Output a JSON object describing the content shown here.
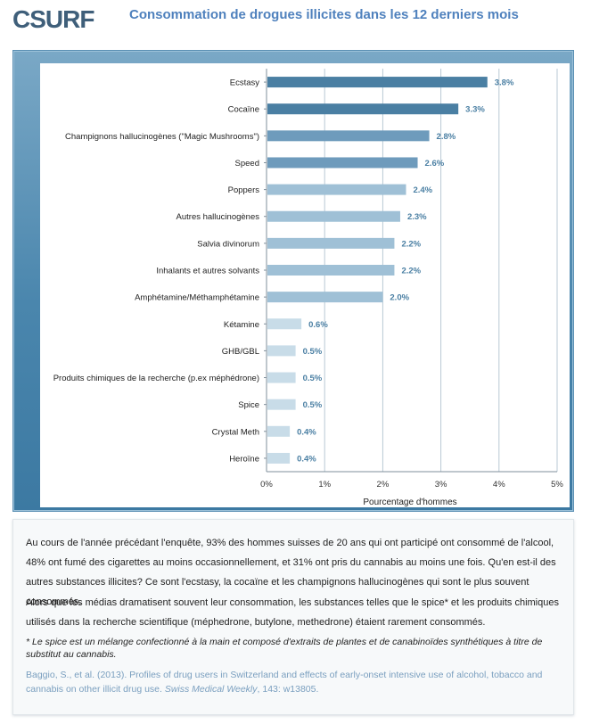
{
  "header": {
    "logo_text": "CSURF",
    "title": "Consommation de drogues illicites dans les 12 derniers mois"
  },
  "colors": {
    "dark": "#4a7fa3",
    "mid": "#6e9bbc",
    "light": "#9fc0d6",
    "pale": "#c8dce8",
    "label": "#4a7fa3",
    "accent": "#4f81bd"
  },
  "chart_data": {
    "type": "bar",
    "orientation": "horizontal",
    "categories": [
      "Ecstasy",
      "Cocaïne",
      "Champignons hallucinogènes (\"Magic Mushrooms\")",
      "Speed",
      "Poppers",
      "Autres hallucinogènes",
      "Salvia divinorum",
      "Inhalants et autres solvants",
      "Amphétamine/Méthamphétamine",
      "Kétamine",
      "GHB/GBL",
      "Produits chimiques de la recherche (p.ex méphédrone)",
      "Spice",
      "Crystal Meth",
      "Heroïne"
    ],
    "values": [
      3.8,
      3.3,
      2.8,
      2.6,
      2.4,
      2.3,
      2.2,
      2.2,
      2.0,
      0.6,
      0.5,
      0.5,
      0.5,
      0.4,
      0.4
    ],
    "data_labels": [
      "3.8%",
      "3.3%",
      "2.8%",
      "2.6%",
      "2.4%",
      "2.3%",
      "2.2%",
      "2.2%",
      "2.0%",
      "0.6%",
      "0.5%",
      "0.5%",
      "0.5%",
      "0.4%",
      "0.4%"
    ],
    "xlim": [
      0,
      5
    ],
    "ticks": [
      0,
      1,
      2,
      3,
      4,
      5
    ],
    "tick_labels": [
      "0%",
      "1%",
      "2%",
      "3%",
      "4%",
      "5%"
    ],
    "xlabel": "Pourcentage d'hommes",
    "grid": true
  },
  "text": {
    "p1": "Au cours de l'année précédant l'enquête, 93% des hommes suisses de 20 ans qui ont participé ont consommé de l'alcool, 48% ont fumé des cigarettes au moins occasionnellement, et 31%  ont pris du cannabis au moins une fois. Qu'en est-il des autres substances illicites? Ce sont l'ecstasy, la cocaïne et les champignons hallucinogènes qui sont le plus souvent consommés.",
    "p2": "Alors que les médias dramatisent souvent leur consommation,  les substances telles que le spice* et les produits chimiques utilisés dans la recherche scientifique (méphedrone, butylone, methedrone) étaient rarement consommés.",
    "p3": "* Le spice est un mélange confectionné à la main et composé d'extraits de plantes et de canabinoïdes synthétiques à titre de substitut au cannabis.",
    "ref_a": "Baggio, S., et al. (2013). Profiles of drug users in Switzerland and effects of early-onset intensive use of alcohol, tobacco and cannabis on other illicit drug use.",
    "ref_journal": "Swiss Medical Weekly",
    "ref_b": ",  143: w13805."
  }
}
